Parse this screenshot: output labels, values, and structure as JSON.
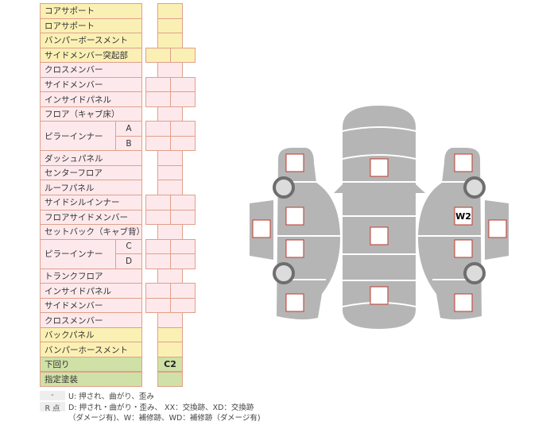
{
  "colors": {
    "yellow": "#fbf0b4",
    "pink": "#fde9ec",
    "green": "#cfe1a6",
    "border": "#e0a08a",
    "car": "#b5b5b5",
    "mark": "#c0392b"
  },
  "rows": [
    {
      "label": "コアサポート",
      "color": "yellow",
      "cells": 1
    },
    {
      "label": "ロアサポート",
      "color": "yellow",
      "cells": 1
    },
    {
      "label": "バンパーボースメント",
      "color": "yellow",
      "cells": 1
    },
    {
      "label": "サイドメンバー突起部",
      "color": "yellow",
      "cells": 2
    },
    {
      "label": "クロスメンバー",
      "color": "pink",
      "cells": 1
    },
    {
      "label": "サイドメンバー",
      "color": "pink",
      "cells": 2
    },
    {
      "label": "インサイドパネル",
      "color": "pink",
      "cells": 2
    },
    {
      "label": "フロア（キャブ床）",
      "color": "pink",
      "cells": 1
    },
    {
      "label": "ピラーインナー",
      "sub": "A",
      "color": "pink",
      "cells": 2,
      "span": 2
    },
    {
      "label": "",
      "sub": "B",
      "color": "pink",
      "cells": 2
    },
    {
      "label": "ダッシュパネル",
      "color": "pink",
      "cells": 1
    },
    {
      "label": "センターフロア",
      "color": "pink",
      "cells": 1
    },
    {
      "label": "ルーフパネル",
      "color": "pink",
      "cells": 1
    },
    {
      "label": "サイドシルインナー",
      "color": "pink",
      "cells": 2
    },
    {
      "label": "フロアサイドメンバー",
      "color": "pink",
      "cells": 2
    },
    {
      "label": "セットバック（キャブ背）",
      "color": "pink",
      "cells": 1
    },
    {
      "label": "ピラーインナー",
      "sub": "C",
      "color": "pink",
      "cells": 2,
      "span": 2
    },
    {
      "label": "",
      "sub": "D",
      "color": "pink",
      "cells": 2
    },
    {
      "label": "トランクフロア",
      "color": "pink",
      "cells": 1
    },
    {
      "label": "インサイドパネル",
      "color": "pink",
      "cells": 2
    },
    {
      "label": "サイドメンバー",
      "color": "pink",
      "cells": 2
    },
    {
      "label": "クロスメンバー",
      "color": "pink",
      "cells": 1
    },
    {
      "label": "バックパネル",
      "color": "yellow",
      "cells": 1
    },
    {
      "label": "バンパーホースメント",
      "color": "yellow",
      "cells": 1
    },
    {
      "label": "下回り",
      "color": "green",
      "cells": 1,
      "value": "C2"
    },
    {
      "label": "指定塗装",
      "color": "green",
      "cells": 1
    }
  ],
  "diagram": {
    "marks": [
      "",
      "",
      "",
      "",
      "",
      "",
      "",
      "",
      "",
      "W2",
      "",
      "",
      ""
    ]
  },
  "legend": {
    "tag1": "-",
    "text1": "U: 押され、曲がり、歪み",
    "tag2": "R 点",
    "text2": "D: 押され・曲がり・歪み、 XX：交換跡、XD：交換跡",
    "text3": "（ダメージ有)、W：補修跡、WD：補修跡（ダメージ有)"
  }
}
